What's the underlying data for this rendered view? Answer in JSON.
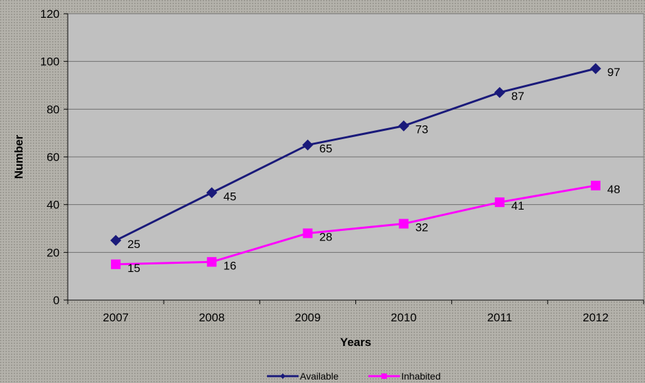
{
  "chart_data": {
    "type": "line",
    "categories": [
      "2007",
      "2008",
      "2009",
      "2010",
      "2011",
      "2012"
    ],
    "series": [
      {
        "name": "Available",
        "values": [
          25,
          45,
          65,
          73,
          87,
          97
        ],
        "color": "#1a1a7a",
        "marker": "diamond"
      },
      {
        "name": "Inhabited",
        "values": [
          15,
          16,
          28,
          32,
          41,
          48
        ],
        "color": "#ff00ff",
        "marker": "square"
      }
    ],
    "xlabel": "Years",
    "ylabel": "Number",
    "ylim": [
      0,
      120
    ],
    "yticks": [
      0,
      20,
      40,
      60,
      80,
      100,
      120
    ],
    "grid": "horizontal",
    "legend_position": "bottom",
    "plot_background": "#c0c0c0"
  }
}
